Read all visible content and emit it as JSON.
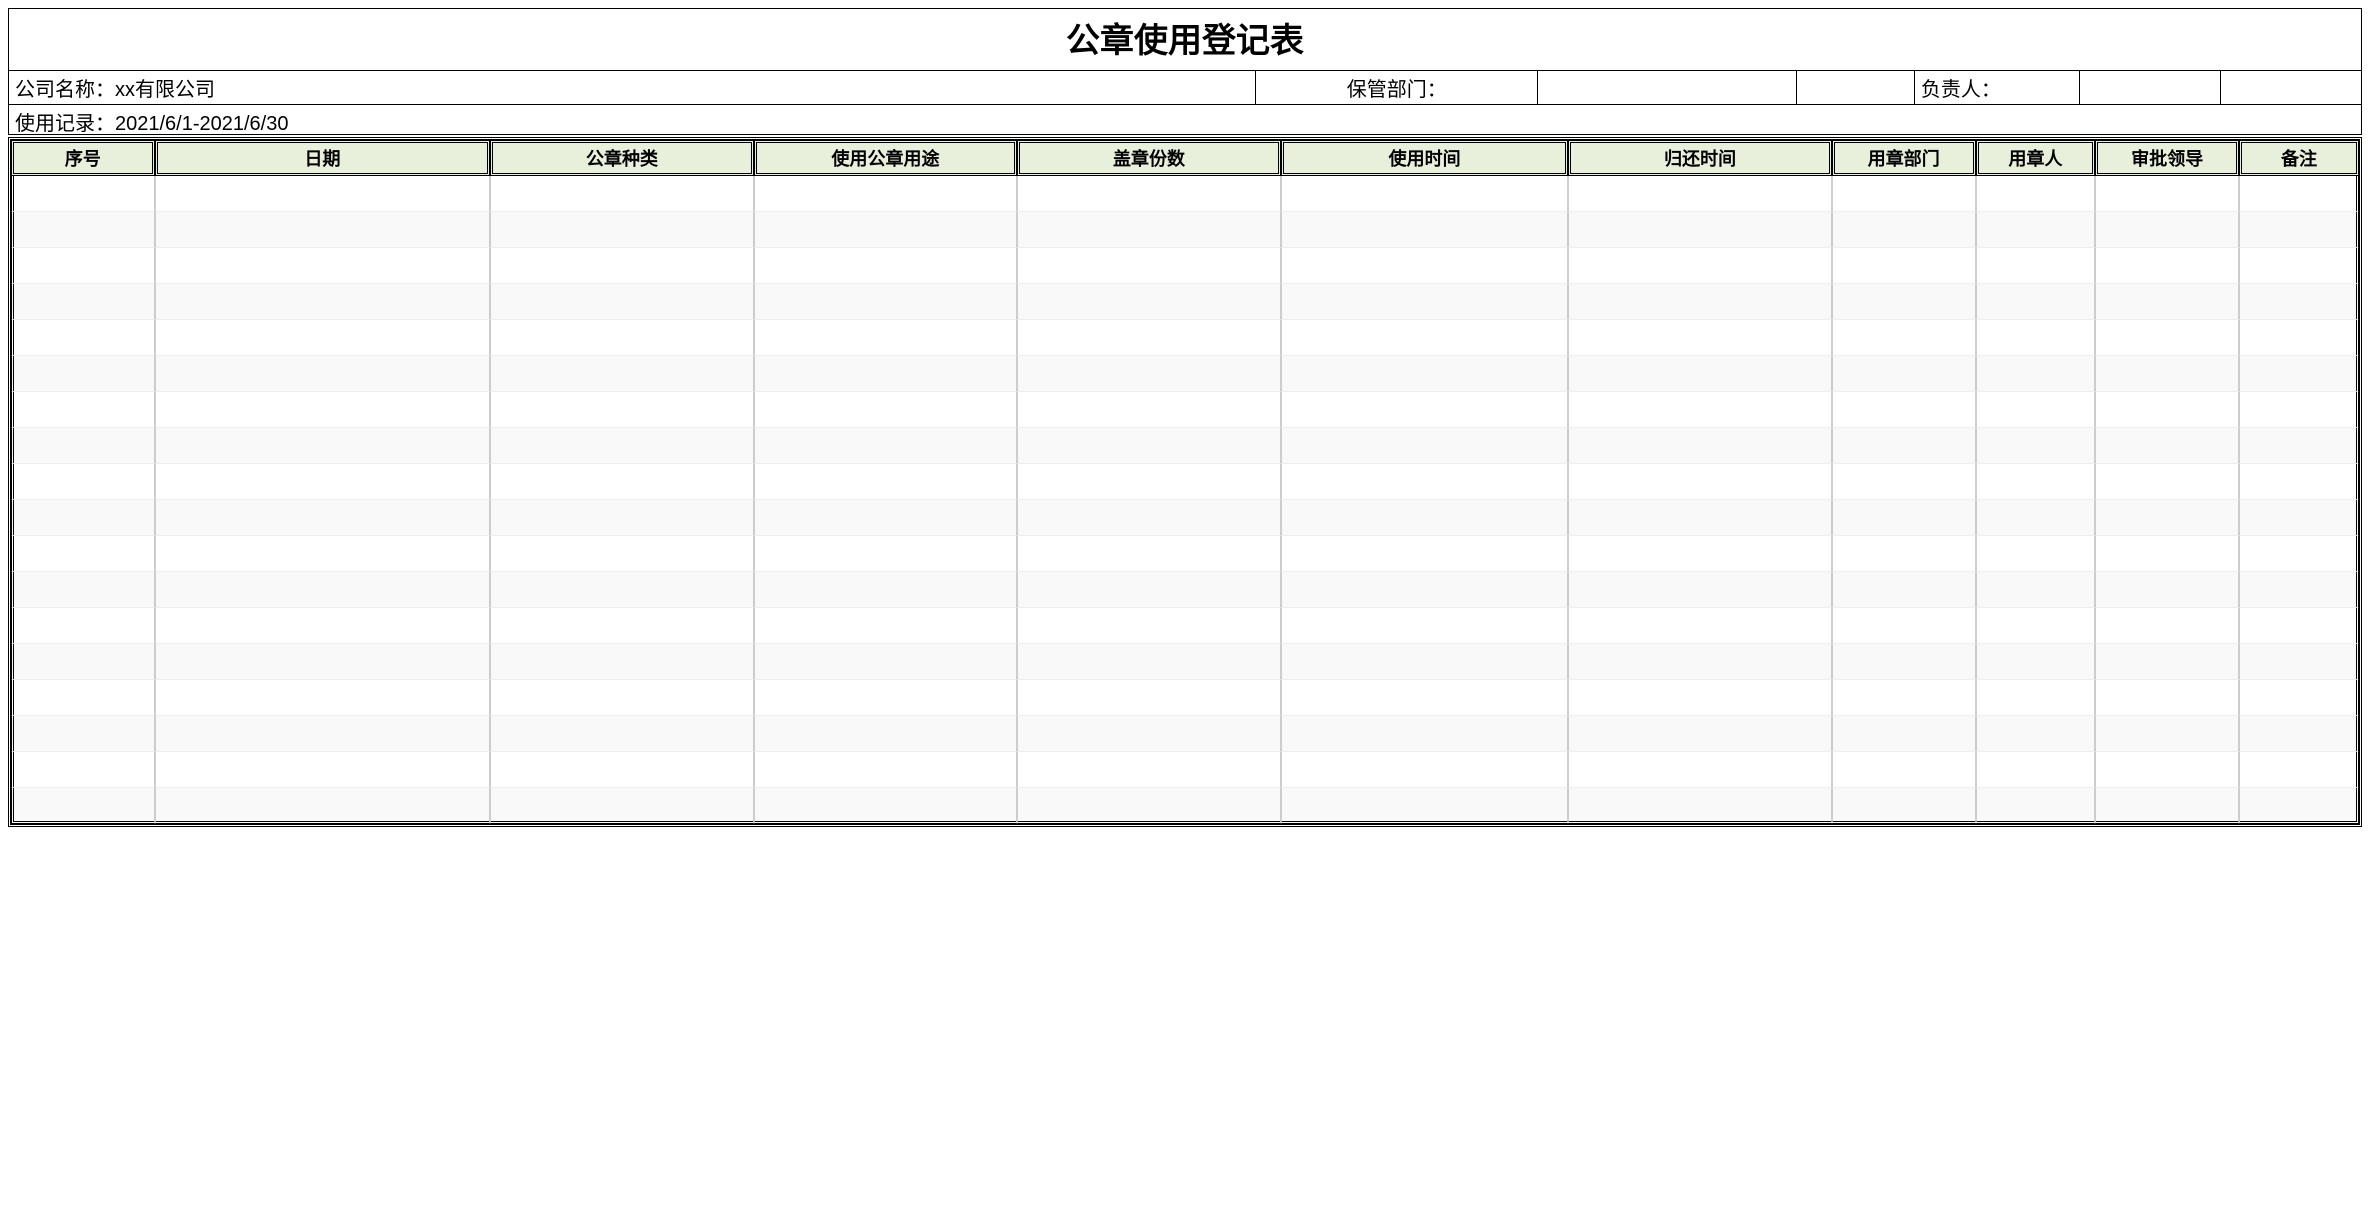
{
  "title": "公章使用登记表",
  "info": {
    "company_label": "公司名称：",
    "company_value": "xx有限公司",
    "dept_label": "保管部门：",
    "dept_value": "",
    "owner_label": "负责人：",
    "owner_value": ""
  },
  "record_label": "使用记录：",
  "record_period": "2021/6/1-2021/6/30",
  "columns": [
    {
      "label": "序号",
      "width": "6%"
    },
    {
      "label": "日期",
      "width": "14%"
    },
    {
      "label": "公章种类",
      "width": "11%"
    },
    {
      "label": "使用公章用途",
      "width": "11%"
    },
    {
      "label": "盖章份数",
      "width": "11%"
    },
    {
      "label": "使用时间",
      "width": "12%"
    },
    {
      "label": "归还时间",
      "width": "11%"
    },
    {
      "label": "用章部门",
      "width": "6%"
    },
    {
      "label": "用章人",
      "width": "5%"
    },
    {
      "label": "审批领导",
      "width": "6%"
    },
    {
      "label": "备注",
      "width": "5%"
    }
  ],
  "rows": [
    [
      "",
      "",
      "",
      "",
      "",
      "",
      "",
      "",
      "",
      "",
      ""
    ],
    [
      "",
      "",
      "",
      "",
      "",
      "",
      "",
      "",
      "",
      "",
      ""
    ],
    [
      "",
      "",
      "",
      "",
      "",
      "",
      "",
      "",
      "",
      "",
      ""
    ],
    [
      "",
      "",
      "",
      "",
      "",
      "",
      "",
      "",
      "",
      "",
      ""
    ],
    [
      "",
      "",
      "",
      "",
      "",
      "",
      "",
      "",
      "",
      "",
      ""
    ],
    [
      "",
      "",
      "",
      "",
      "",
      "",
      "",
      "",
      "",
      "",
      ""
    ],
    [
      "",
      "",
      "",
      "",
      "",
      "",
      "",
      "",
      "",
      "",
      ""
    ],
    [
      "",
      "",
      "",
      "",
      "",
      "",
      "",
      "",
      "",
      "",
      ""
    ],
    [
      "",
      "",
      "",
      "",
      "",
      "",
      "",
      "",
      "",
      "",
      ""
    ],
    [
      "",
      "",
      "",
      "",
      "",
      "",
      "",
      "",
      "",
      "",
      ""
    ],
    [
      "",
      "",
      "",
      "",
      "",
      "",
      "",
      "",
      "",
      "",
      ""
    ],
    [
      "",
      "",
      "",
      "",
      "",
      "",
      "",
      "",
      "",
      "",
      ""
    ],
    [
      "",
      "",
      "",
      "",
      "",
      "",
      "",
      "",
      "",
      "",
      ""
    ],
    [
      "",
      "",
      "",
      "",
      "",
      "",
      "",
      "",
      "",
      "",
      ""
    ],
    [
      "",
      "",
      "",
      "",
      "",
      "",
      "",
      "",
      "",
      "",
      ""
    ],
    [
      "",
      "",
      "",
      "",
      "",
      "",
      "",
      "",
      "",
      "",
      ""
    ],
    [
      "",
      "",
      "",
      "",
      "",
      "",
      "",
      "",
      "",
      "",
      ""
    ],
    [
      "",
      "",
      "",
      "",
      "",
      "",
      "",
      "",
      "",
      "",
      ""
    ]
  ],
  "styling": {
    "header_bg": "#e8f0dc",
    "row_alt_bg": "#f9f9f9",
    "border_color": "#000000",
    "grid_color": "#cccccc",
    "title_fontsize": 34,
    "header_fontsize": 18,
    "info_fontsize": 20
  }
}
